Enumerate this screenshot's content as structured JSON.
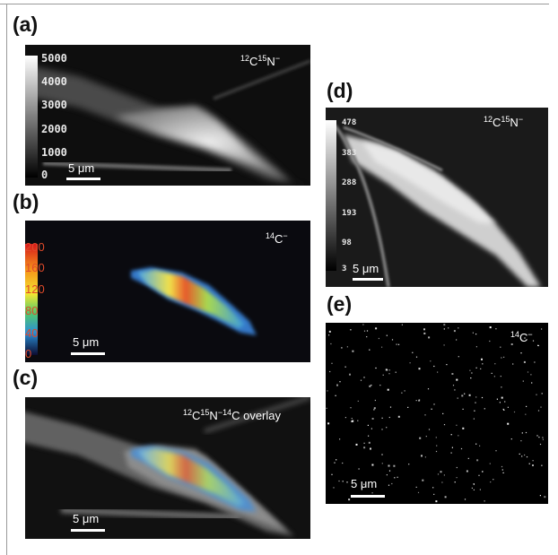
{
  "panels": {
    "a": {
      "label": "(a)",
      "ion": {
        "mass1": "12",
        "el1": "C",
        "mass2": "15",
        "el2": "N",
        "charge": "−"
      },
      "scale_ticks": [
        "5000",
        "4000",
        "3000",
        "2000",
        "1000",
        "0"
      ],
      "scalebar": "5 μm"
    },
    "b": {
      "label": "(b)",
      "ion": {
        "mass1": "14",
        "el1": "C",
        "charge": "−"
      },
      "scale_ticks": [
        "200",
        "160",
        "120",
        "80",
        "40",
        "0"
      ],
      "scalebar": "5 μm"
    },
    "c": {
      "label": "(c)",
      "ion": {
        "mass1": "12",
        "el1": "C",
        "mass2": "15",
        "el2": "N",
        "sep": "−",
        "mass3": "14",
        "el3": "C",
        "suffix": " overlay"
      },
      "scalebar": "5 μm"
    },
    "d": {
      "label": "(d)",
      "ion": {
        "mass1": "12",
        "el1": "C",
        "mass2": "15",
        "el2": "N",
        "charge": "−"
      },
      "scale_ticks": [
        "478",
        "383",
        "288",
        "193",
        "98",
        "3"
      ],
      "scalebar": "5 μm"
    },
    "e": {
      "label": "(e)",
      "ion": {
        "mass1": "14",
        "el1": "C",
        "charge": "−"
      },
      "scalebar": "5 μm"
    }
  },
  "colors": {
    "colorbar_ticks": "#e04a2a",
    "background": "#000000"
  }
}
